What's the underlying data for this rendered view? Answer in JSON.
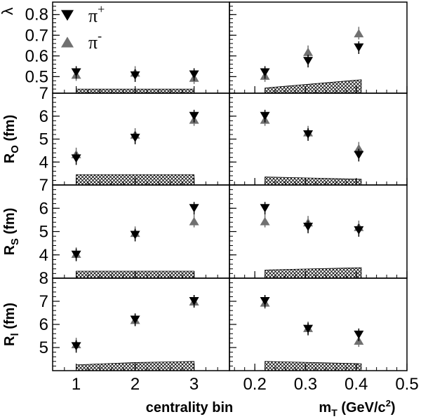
{
  "chart_data": {
    "type": "scatter",
    "layout": "4 rows x 2 columns, shared y-axis per row, shared x-axis per column",
    "legend": {
      "placement": "top-left",
      "entries": [
        {
          "name": "π",
          "superscript": "+",
          "marker": "triangle-down",
          "color": "#000000"
        },
        {
          "name": "π",
          "superscript": "-",
          "marker": "triangle-up",
          "color": "#707070"
        }
      ]
    },
    "columns": [
      {
        "xlabel": "centrality bin",
        "xlim": [
          0.6,
          3.6
        ],
        "xticks": [
          1,
          2,
          3
        ],
        "xtick_labels": [
          "1",
          "2",
          "3"
        ]
      },
      {
        "xlabel_main": "m",
        "xlabel_sub": "T",
        "xlabel_rest": " (GeV/c",
        "xlabel_sup": "2",
        "xlabel_end": ")",
        "xlim": [
          0.15,
          0.5
        ],
        "xticks": [
          0.2,
          0.3,
          0.4,
          0.5
        ],
        "xtick_labels": [
          "0.2",
          "0.3",
          "0.4",
          "0.5"
        ]
      }
    ],
    "rows": [
      {
        "ylabel_main": "λ",
        "ylabel_sub": "",
        "ylim": [
          0.42,
          0.86
        ],
        "yticks": [
          0.5,
          0.6,
          0.7,
          0.8
        ],
        "ytick_labels": [
          "0.5",
          "0.6",
          "0.7",
          "0.8"
        ],
        "panels": [
          {
            "x": [
              1,
              2,
              3
            ],
            "pi_plus": [
              0.52,
              0.505,
              0.51
            ],
            "pi_minus": [
              0.51,
              0.52,
              0.495
            ],
            "band": [
              [
                1,
                0.44,
                0.42
              ],
              [
                3,
                0.44,
                0.42
              ]
            ]
          },
          {
            "x": [
              0.22,
              0.305,
              0.405
            ],
            "pi_plus": [
              0.52,
              0.575,
              0.64
            ],
            "pi_minus": [
              0.505,
              0.62,
              0.71
            ],
            "band": [
              [
                0.22,
                0.445,
                0.42
              ],
              [
                0.41,
                0.485,
                0.42
              ]
            ]
          }
        ]
      },
      {
        "ylabel_main": "R",
        "ylabel_sub": "O",
        "ylabel_rest": " (fm)",
        "ylim": [
          3.0,
          7.0
        ],
        "yticks": [
          4,
          5,
          6,
          7
        ],
        "ytick_labels": [
          "4",
          "5",
          "6",
          "7"
        ],
        "panels": [
          {
            "x": [
              1,
              2,
              3
            ],
            "pi_plus": [
              4.15,
              5.05,
              6.0
            ],
            "pi_minus": [
              4.35,
              5.2,
              5.85
            ],
            "band": [
              [
                1,
                3.45,
                3.0
              ],
              [
                3,
                3.45,
                3.0
              ]
            ]
          },
          {
            "x": [
              0.22,
              0.305,
              0.405
            ],
            "pi_plus": [
              6.0,
              5.2,
              4.3
            ],
            "pi_minus": [
              5.85,
              5.3,
              4.6
            ],
            "band": [
              [
                0.22,
                3.35,
                3.0
              ],
              [
                0.41,
                3.25,
                3.0
              ]
            ]
          }
        ]
      },
      {
        "ylabel_main": "R",
        "ylabel_sub": "S",
        "ylabel_rest": " (fm)",
        "ylim": [
          3.0,
          7.0
        ],
        "yticks": [
          4,
          5,
          6,
          7
        ],
        "ytick_labels": [
          "4",
          "5",
          "6",
          "7"
        ],
        "panels": [
          {
            "x": [
              1,
              2,
              3
            ],
            "pi_plus": [
              4.0,
              4.85,
              6.0
            ],
            "pi_minus": [
              4.05,
              4.95,
              5.45
            ],
            "band": [
              [
                1,
                3.3,
                3.0
              ],
              [
                3,
                3.3,
                3.0
              ]
            ]
          },
          {
            "x": [
              0.22,
              0.305,
              0.405
            ],
            "pi_plus": [
              6.0,
              5.2,
              5.05
            ],
            "pi_minus": [
              5.45,
              5.4,
              5.2
            ],
            "band": [
              [
                0.22,
                3.35,
                3.0
              ],
              [
                0.41,
                3.45,
                3.0
              ]
            ]
          }
        ]
      },
      {
        "ylabel_main": "R",
        "ylabel_sub": "l",
        "ylabel_rest": " (fm)",
        "ylim": [
          4.0,
          8.0
        ],
        "yticks": [
          5,
          6,
          7,
          8
        ],
        "ytick_labels": [
          "5",
          "6",
          "7",
          "8"
        ],
        "panels": [
          {
            "x": [
              1,
              2,
              3
            ],
            "pi_plus": [
              5.05,
              6.2,
              7.0
            ],
            "pi_minus": [
              5.15,
              6.2,
              7.0
            ],
            "band": [
              [
                1,
                4.25,
                4.0
              ],
              [
                2,
                4.35,
                4.0
              ],
              [
                3,
                4.4,
                4.0
              ]
            ]
          },
          {
            "x": [
              0.22,
              0.305,
              0.405
            ],
            "pi_plus": [
              7.0,
              5.8,
              5.55
            ],
            "pi_minus": [
              6.95,
              5.85,
              5.3
            ],
            "band": [
              [
                0.22,
                4.4,
                4.0
              ],
              [
                0.41,
                4.3,
                4.0
              ]
            ]
          }
        ]
      }
    ],
    "colors": {
      "pi_plus": "#000000",
      "pi_minus": "#707070",
      "band": "#000000"
    }
  }
}
